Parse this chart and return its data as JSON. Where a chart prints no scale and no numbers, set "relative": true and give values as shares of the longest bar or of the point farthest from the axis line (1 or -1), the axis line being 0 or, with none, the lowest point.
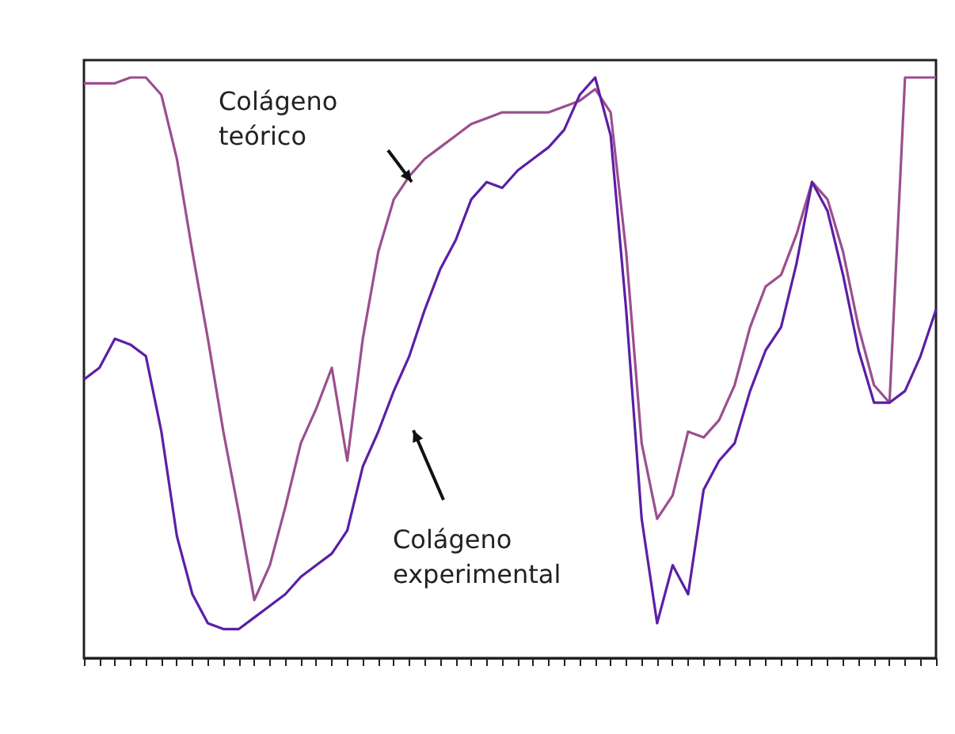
{
  "chart_data": {
    "type": "line",
    "relative": true,
    "legend": false,
    "grid": false,
    "marker": "none",
    "line_style": "solid",
    "categories": [
      null,
      null,
      null,
      null,
      null,
      null,
      null,
      null,
      null,
      null,
      null,
      null,
      null,
      null,
      null,
      null,
      null,
      null,
      null,
      null,
      null,
      null,
      null,
      null,
      null,
      null,
      null,
      null,
      null,
      null,
      null,
      null,
      null,
      null,
      null,
      null,
      null,
      null,
      null,
      null,
      null,
      null,
      null,
      null,
      null,
      null,
      null,
      null,
      null,
      null,
      null,
      null,
      null,
      null,
      null,
      null
    ],
    "series": [
      {
        "name": "Colágeno teórico",
        "color": "#9b4f8e",
        "values": [
          0.99,
          0.99,
          0.99,
          1.0,
          1.0,
          0.97,
          0.86,
          0.7,
          0.55,
          0.39,
          0.25,
          0.1,
          0.16,
          0.26,
          0.37,
          0.43,
          0.5,
          0.34,
          0.55,
          0.7,
          0.79,
          0.83,
          0.86,
          0.88,
          0.9,
          0.92,
          0.93,
          0.94,
          0.94,
          0.94,
          0.94,
          0.95,
          0.96,
          0.98,
          0.94,
          0.7,
          0.37,
          0.24,
          0.28,
          0.39,
          0.38,
          0.41,
          0.47,
          0.57,
          0.64,
          0.66,
          0.73,
          0.82,
          0.79,
          0.7,
          0.57,
          0.47,
          0.44,
          1.0,
          1.0,
          1.0
        ]
      },
      {
        "name": "Colágeno experimental",
        "color": "#5b1fa6",
        "values": [
          0.48,
          0.5,
          0.55,
          0.54,
          0.52,
          0.39,
          0.21,
          0.11,
          0.06,
          0.05,
          0.05,
          0.07,
          0.09,
          0.11,
          0.14,
          0.16,
          0.18,
          0.22,
          0.33,
          0.39,
          0.46,
          0.52,
          0.6,
          0.67,
          0.72,
          0.79,
          0.82,
          0.81,
          0.84,
          0.86,
          0.88,
          0.91,
          0.97,
          1.0,
          0.9,
          0.6,
          0.24,
          0.06,
          0.16,
          0.11,
          0.29,
          0.34,
          0.37,
          0.46,
          0.53,
          0.57,
          0.68,
          0.82,
          0.77,
          0.66,
          0.53,
          0.44,
          0.44,
          0.46,
          0.52,
          0.6
        ]
      }
    ]
  }
}
